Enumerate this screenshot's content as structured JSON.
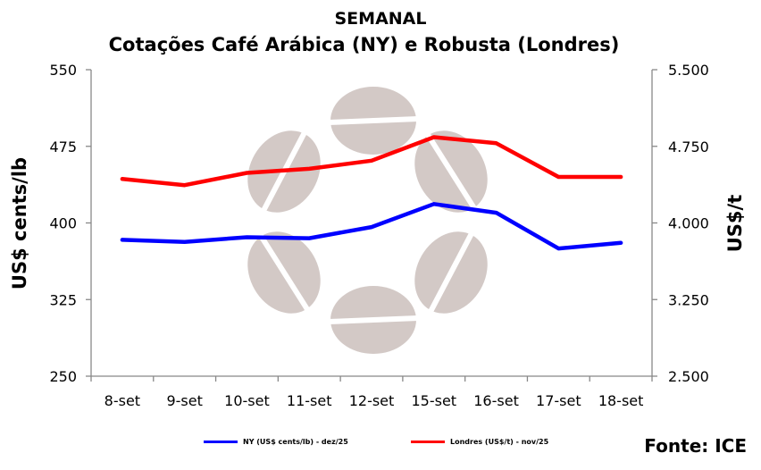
{
  "header": {
    "title": "SEMANAL",
    "subtitle": "Cotações Café Arábica (NY) e Robusta (Londres)"
  },
  "source": "Fonte: ICE",
  "colors": {
    "ny": "#0000ff",
    "londres": "#ff0000",
    "axis": "#888888",
    "watermark": "#cbbfbc"
  },
  "chart_data": {
    "type": "line",
    "categories": [
      "8-set",
      "9-set",
      "10-set",
      "11-set",
      "12-set",
      "15-set",
      "16-set",
      "17-set",
      "18-set"
    ],
    "series": [
      {
        "name": "NY (US$ cents/lb) - dez/25",
        "axis": "left",
        "color": "#0000ff",
        "values": [
          383.5,
          381.5,
          386.0,
          385.0,
          396.0,
          418.5,
          410.0,
          375.0,
          380.5
        ]
      },
      {
        "name": "Londres (US$/t) - nov/25",
        "axis": "right",
        "color": "#ff0000",
        "values": [
          4430,
          4370,
          4490,
          4530,
          4610,
          4840,
          4780,
          4450,
          4450
        ]
      }
    ],
    "ylabel_left": "US$ cents/lb",
    "ylabel_right": "US$/t",
    "ylim_left": [
      250,
      550
    ],
    "ylim_right": [
      2500,
      5500
    ],
    "yticks_left": [
      "550",
      "475",
      "400",
      "325",
      "250"
    ],
    "yticks_right": [
      "5.500",
      "4.750",
      "4.000",
      "3.250",
      "2.500"
    ],
    "ytick_values_left": [
      550,
      475,
      400,
      325,
      250
    ],
    "grid": false,
    "legend_position": "bottom"
  }
}
